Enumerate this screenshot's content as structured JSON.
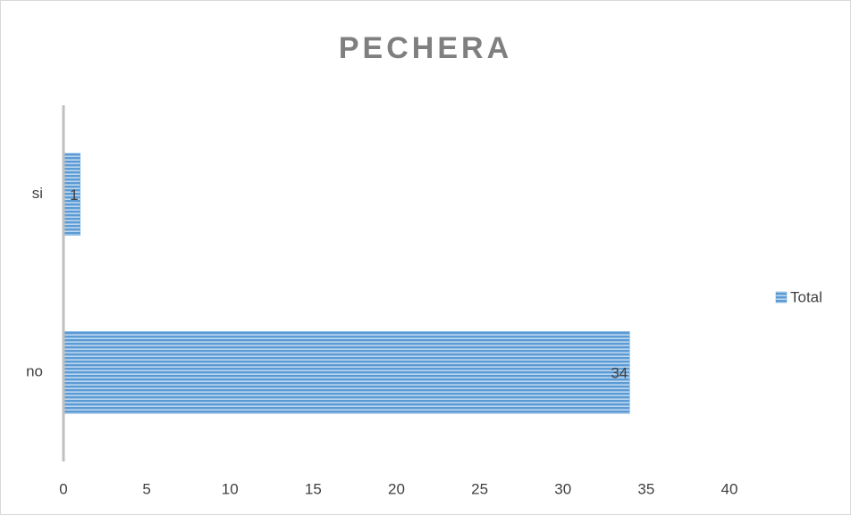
{
  "chart_data": {
    "type": "bar",
    "orientation": "horizontal",
    "title": "PECHERA",
    "categories": [
      "no",
      "si"
    ],
    "series": [
      {
        "name": "Total",
        "color": "#5b9bd5",
        "values": [
          34,
          1
        ]
      }
    ],
    "xlim": [
      0,
      40
    ],
    "xticks": [
      0,
      5,
      10,
      15,
      20,
      25,
      30,
      35,
      40
    ],
    "grid": false,
    "legend": "right"
  }
}
